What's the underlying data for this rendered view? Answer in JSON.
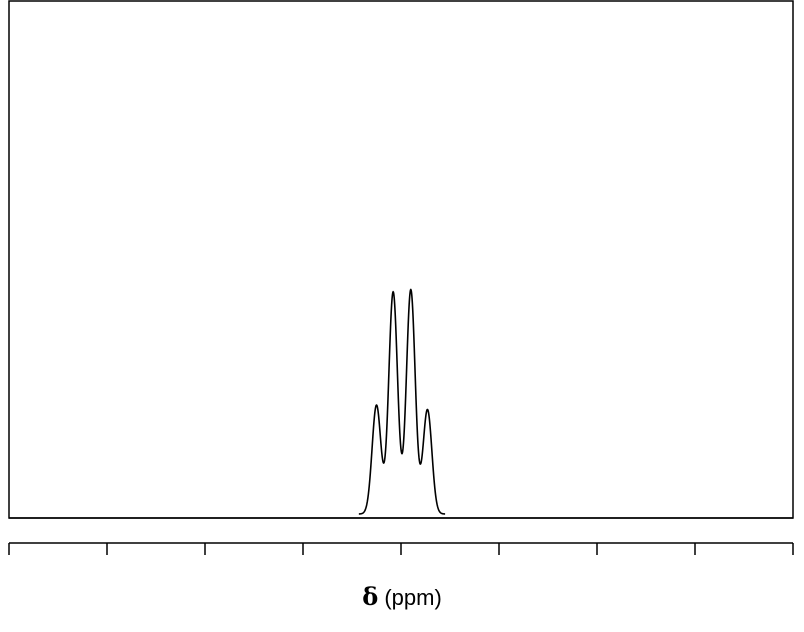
{
  "chart_data": {
    "type": "line",
    "title": "",
    "xlabel_symbol": "δ",
    "xlabel_unit": "(ppm)",
    "ylabel": "",
    "grid": false,
    "x_ticks_count": 9,
    "x_tick_labels": [],
    "series": [
      {
        "multiplet": "quartet",
        "peaks": [
          {
            "x": 3.75,
            "y": 0.49
          },
          {
            "x": 3.92,
            "y": 1.0
          },
          {
            "x": 4.1,
            "y": 1.01
          },
          {
            "x": 4.27,
            "y": 0.47
          }
        ]
      }
    ],
    "xlim": [
      0,
      8
    ],
    "ylim": [
      0,
      2.2
    ]
  },
  "colors": {
    "line": "#000000",
    "background": "#ffffff"
  }
}
